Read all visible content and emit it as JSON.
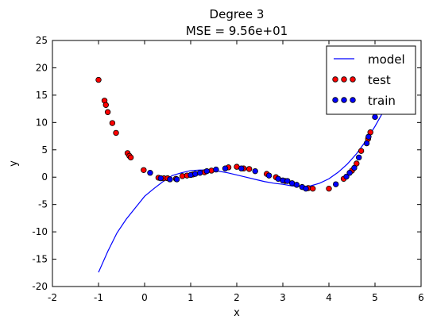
{
  "chart_data": {
    "type": "scatter",
    "title_line1": "Degree 3",
    "title_line2": "MSE = 9.56e+01",
    "xlabel": "x",
    "ylabel": "y",
    "xlim": [
      -2,
      6
    ],
    "ylim": [
      -20,
      25
    ],
    "xticks": [
      -2,
      -1,
      0,
      1,
      2,
      3,
      4,
      5,
      6
    ],
    "yticks": [
      -20,
      -15,
      -10,
      -5,
      0,
      5,
      10,
      15,
      20,
      25
    ],
    "legend_position": "top-right",
    "legend": {
      "model": "model",
      "test": "test",
      "train": "train"
    },
    "colors": {
      "model": "#0000ff",
      "test": "#ff0000",
      "train": "#0000ff",
      "marker_edge": "#000000"
    },
    "model": {
      "name": "model",
      "x": [
        -1.0,
        -0.8,
        -0.6,
        -0.4,
        -0.2,
        0.0,
        0.2,
        0.4,
        0.6,
        0.8,
        1.0,
        1.2,
        1.4,
        1.6,
        1.8,
        2.0,
        2.2,
        2.4,
        2.6,
        2.8,
        3.0,
        3.2,
        3.4,
        3.6,
        3.8,
        4.0,
        4.2,
        4.4,
        4.6,
        4.8,
        5.0,
        5.2,
        5.4
      ],
      "y": [
        -17.4,
        -13.6,
        -10.2,
        -7.7,
        -5.6,
        -3.5,
        -2.1,
        -0.8,
        0.3,
        0.8,
        1.2,
        1.3,
        1.3,
        1.1,
        0.8,
        0.4,
        0.0,
        -0.4,
        -0.8,
        -1.1,
        -1.3,
        -1.6,
        -1.7,
        -1.6,
        -1.1,
        -0.3,
        0.9,
        2.4,
        4.3,
        6.6,
        9.3,
        12.3,
        15.8
      ]
    },
    "series": [
      {
        "name": "test",
        "points": [
          [
            -1.0,
            17.8
          ],
          [
            -0.87,
            14.0
          ],
          [
            -0.84,
            13.2
          ],
          [
            -0.8,
            11.9
          ],
          [
            -0.7,
            9.9
          ],
          [
            -0.62,
            8.1
          ],
          [
            -0.37,
            4.4
          ],
          [
            -0.33,
            3.9
          ],
          [
            -0.3,
            3.6
          ],
          [
            -0.02,
            1.3
          ],
          [
            0.3,
            -0.1
          ],
          [
            0.42,
            -0.2
          ],
          [
            0.5,
            -0.2
          ],
          [
            0.68,
            -0.3
          ],
          [
            0.82,
            0.2
          ],
          [
            0.92,
            0.3
          ],
          [
            1.05,
            0.5
          ],
          [
            1.3,
            0.9
          ],
          [
            1.45,
            1.2
          ],
          [
            1.82,
            1.8
          ],
          [
            2.0,
            1.9
          ],
          [
            2.15,
            1.6
          ],
          [
            2.27,
            1.5
          ],
          [
            2.65,
            0.6
          ],
          [
            2.85,
            0.0
          ],
          [
            3.05,
            -0.7
          ],
          [
            3.55,
            -2.0
          ],
          [
            3.65,
            -2.1
          ],
          [
            4.0,
            -2.1
          ],
          [
            4.32,
            -0.3
          ],
          [
            4.5,
            1.2
          ],
          [
            4.6,
            2.5
          ],
          [
            4.7,
            4.8
          ],
          [
            4.85,
            7.0
          ],
          [
            4.9,
            8.2
          ]
        ]
      },
      {
        "name": "train",
        "points": [
          [
            0.12,
            0.8
          ],
          [
            0.35,
            -0.2
          ],
          [
            0.55,
            -0.4
          ],
          [
            0.7,
            -0.4
          ],
          [
            1.0,
            0.4
          ],
          [
            1.1,
            0.6
          ],
          [
            1.2,
            0.8
          ],
          [
            1.35,
            1.1
          ],
          [
            1.55,
            1.4
          ],
          [
            1.75,
            1.6
          ],
          [
            2.1,
            1.6
          ],
          [
            2.4,
            1.1
          ],
          [
            2.7,
            0.3
          ],
          [
            2.9,
            -0.3
          ],
          [
            3.0,
            -0.6
          ],
          [
            3.1,
            -0.7
          ],
          [
            3.2,
            -1.1
          ],
          [
            3.3,
            -1.4
          ],
          [
            3.42,
            -1.8
          ],
          [
            3.5,
            -2.1
          ],
          [
            4.15,
            -1.3
          ],
          [
            4.38,
            0.1
          ],
          [
            4.45,
            0.8
          ],
          [
            4.55,
            1.7
          ],
          [
            4.65,
            3.6
          ],
          [
            4.82,
            6.2
          ],
          [
            4.86,
            7.4
          ],
          [
            5.0,
            11.0
          ]
        ]
      }
    ]
  }
}
